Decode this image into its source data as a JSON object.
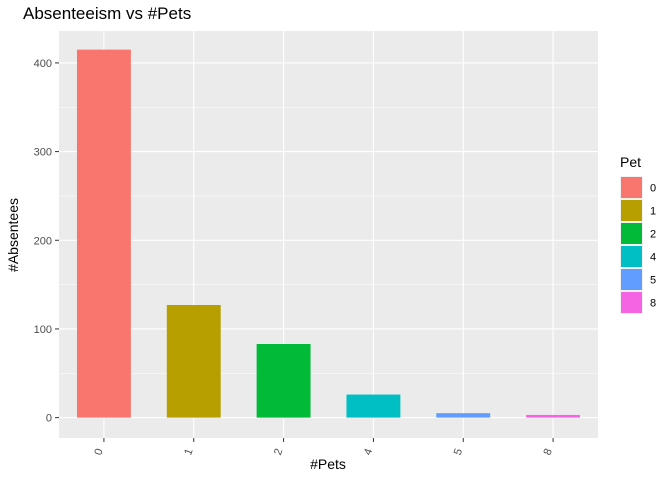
{
  "chart_data": {
    "type": "bar",
    "title": "Absenteeism vs  #Pets",
    "xlabel": "#Pets",
    "ylabel": "#Absentees",
    "categories": [
      "0",
      "1",
      "2",
      "4",
      "5",
      "8"
    ],
    "values": [
      415,
      127,
      83,
      26,
      5,
      3
    ],
    "ylim": [
      -23,
      436
    ],
    "yticks": [
      0,
      100,
      200,
      300,
      400
    ],
    "grid": true,
    "legend": {
      "title": "Pet",
      "placement": "right",
      "entries": [
        "0",
        "1",
        "2",
        "4",
        "5",
        "8"
      ]
    },
    "colors": [
      "#F8766D",
      "#B79F00",
      "#00BA38",
      "#00BFC4",
      "#619CFF",
      "#F564E3"
    ],
    "panel_background": "#EBEBEB",
    "grid_color": "#FFFFFF"
  }
}
